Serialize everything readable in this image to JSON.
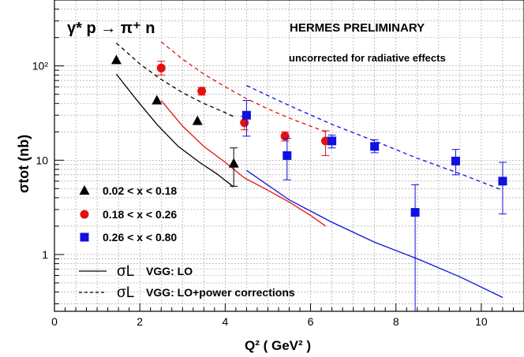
{
  "chart_data": {
    "type": "scatter",
    "process": "γ* p → π⁺ n",
    "watermark": "HERMES PRELIMINARY",
    "note": "uncorrected for radiative effects",
    "xlabel": "Q² ( GeV² )",
    "ylabel": "σtot (nb)",
    "x_scale": "linear",
    "y_scale": "log",
    "xlim": [
      0,
      11
    ],
    "ylim": [
      0.25,
      500
    ],
    "x_ticks": [
      0,
      2,
      4,
      6,
      8,
      10
    ],
    "y_ticks": [
      {
        "value": 1,
        "label": "1"
      },
      {
        "value": 10,
        "label": "10"
      },
      {
        "value": 100,
        "label": "10²"
      }
    ],
    "grid": true,
    "legend_position": "bottom-left",
    "series": [
      {
        "name": "0.02 < x < 0.18",
        "marker": "triangle",
        "color": "#000000",
        "points": [
          {
            "x": 1.45,
            "y": 115
          },
          {
            "x": 2.4,
            "y": 43
          },
          {
            "x": 3.35,
            "y": 26
          },
          {
            "x": 4.2,
            "y": 9.2,
            "err_lo": 5.3,
            "err_hi": 13.5
          }
        ]
      },
      {
        "name": "0.18 < x < 0.26",
        "marker": "circle",
        "color": "#e41010",
        "points": [
          {
            "x": 2.5,
            "y": 95,
            "err_lo": 80,
            "err_hi": 112
          },
          {
            "x": 3.45,
            "y": 54,
            "err_lo": 49,
            "err_hi": 59
          },
          {
            "x": 4.45,
            "y": 25,
            "err_lo": 21,
            "err_hi": 29
          },
          {
            "x": 5.4,
            "y": 18,
            "err_lo": 16,
            "err_hi": 20
          },
          {
            "x": 6.35,
            "y": 16,
            "err_lo": 11.2,
            "err_hi": 20.5
          }
        ]
      },
      {
        "name": "0.26 < x < 0.80",
        "marker": "square",
        "color": "#1010e0",
        "points": [
          {
            "x": 4.5,
            "y": 30,
            "err_lo": 18,
            "err_hi": 43
          },
          {
            "x": 5.45,
            "y": 11.2,
            "err_lo": 6.2,
            "err_hi": 17
          },
          {
            "x": 6.5,
            "y": 16,
            "err_lo": 13.5,
            "err_hi": 18.5
          },
          {
            "x": 7.5,
            "y": 14,
            "err_lo": 12,
            "err_hi": 16.5
          },
          {
            "x": 8.45,
            "y": 2.8,
            "err_lo": 0.25,
            "err_hi": 5.5
          },
          {
            "x": 9.4,
            "y": 9.8,
            "err_lo": 7,
            "err_hi": 13
          },
          {
            "x": 10.5,
            "y": 6,
            "err_lo": 2.7,
            "err_hi": 9.5
          }
        ]
      }
    ],
    "curves": [
      {
        "model": "LO",
        "style": "solid",
        "color": "#000000",
        "x": [
          1.45,
          1.9,
          2.4,
          2.9,
          3.4,
          3.8,
          4.2
        ],
        "y": [
          82,
          45,
          24,
          14,
          9.5,
          7.2,
          5.2
        ]
      },
      {
        "model": "LO",
        "style": "solid",
        "color": "#e41010",
        "x": [
          2.5,
          3.0,
          3.5,
          4.0,
          4.45,
          5.0,
          5.5,
          6.0,
          6.35
        ],
        "y": [
          43,
          23,
          14,
          9.5,
          6.5,
          4.8,
          3.6,
          2.6,
          2.0
        ]
      },
      {
        "model": "LO",
        "style": "solid",
        "color": "#1010e0",
        "x": [
          4.5,
          5.5,
          6.5,
          7.5,
          8.5,
          9.5,
          10.5
        ],
        "y": [
          7.8,
          3.8,
          2.2,
          1.35,
          0.9,
          0.58,
          0.35
        ]
      },
      {
        "model": "LO+power corrections",
        "style": "dashed",
        "color": "#000000",
        "x": [
          1.45,
          2.0,
          2.5,
          3.0,
          3.5,
          4.0,
          4.2
        ],
        "y": [
          175,
          105,
          72,
          52,
          40,
          32,
          29
        ]
      },
      {
        "model": "LO+power corrections",
        "style": "dashed",
        "color": "#e41010",
        "x": [
          2.5,
          3.0,
          3.5,
          4.0,
          4.5,
          5.0,
          5.5,
          6.0,
          6.35
        ],
        "y": [
          180,
          118,
          82,
          60,
          45,
          35,
          28,
          23,
          20
        ]
      },
      {
        "model": "LO+power corrections",
        "style": "dashed",
        "color": "#1010e0",
        "x": [
          4.5,
          5.5,
          6.5,
          7.5,
          8.5,
          9.5,
          10.5
        ],
        "y": [
          62,
          38,
          24,
          16,
          10.5,
          7.2,
          4.8
        ]
      }
    ],
    "legend": [
      {
        "marker": "triangle",
        "color": "#000000",
        "label": "0.02 < x < 0.18"
      },
      {
        "marker": "circle",
        "color": "#e41010",
        "label": "0.18 < x < 0.26"
      },
      {
        "marker": "square",
        "color": "#1010e0",
        "label": "0.26 < x < 0.80"
      },
      {
        "line": "solid",
        "symbol": "σL",
        "label": "VGG: LO"
      },
      {
        "line": "dashed",
        "symbol": "σL",
        "label": "VGG: LO+power corrections"
      }
    ]
  }
}
